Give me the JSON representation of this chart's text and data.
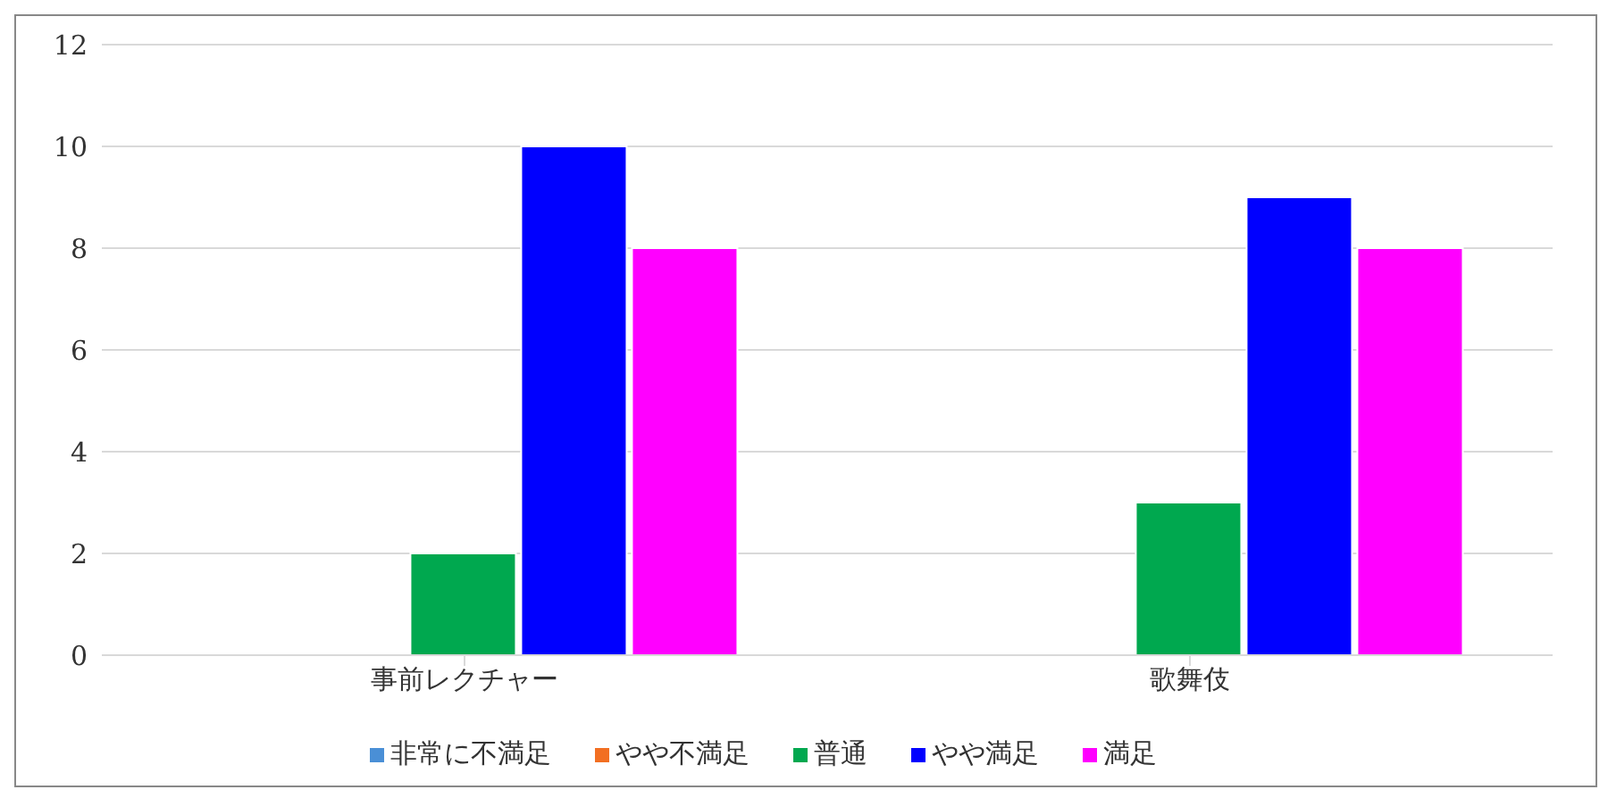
{
  "chart_data": {
    "type": "bar",
    "categories": [
      "事前レクチャー",
      "歌舞伎"
    ],
    "series": [
      {
        "name": "非常に不満足",
        "color": "#4a8fd6",
        "values": [
          0,
          0
        ]
      },
      {
        "name": "やや不満足",
        "color": "#f26f22",
        "values": [
          0,
          0
        ]
      },
      {
        "name": "普通",
        "color": "#00a84f",
        "values": [
          2,
          3
        ]
      },
      {
        "name": "やや満足",
        "color": "#0000ff",
        "values": [
          10,
          9
        ]
      },
      {
        "name": "満足",
        "color": "#ff00ff",
        "values": [
          8,
          8
        ]
      }
    ],
    "ylim": [
      0,
      12
    ],
    "yticks": [
      0,
      2,
      4,
      6,
      8,
      10,
      12
    ],
    "grid": "y",
    "legend": "bottom"
  }
}
